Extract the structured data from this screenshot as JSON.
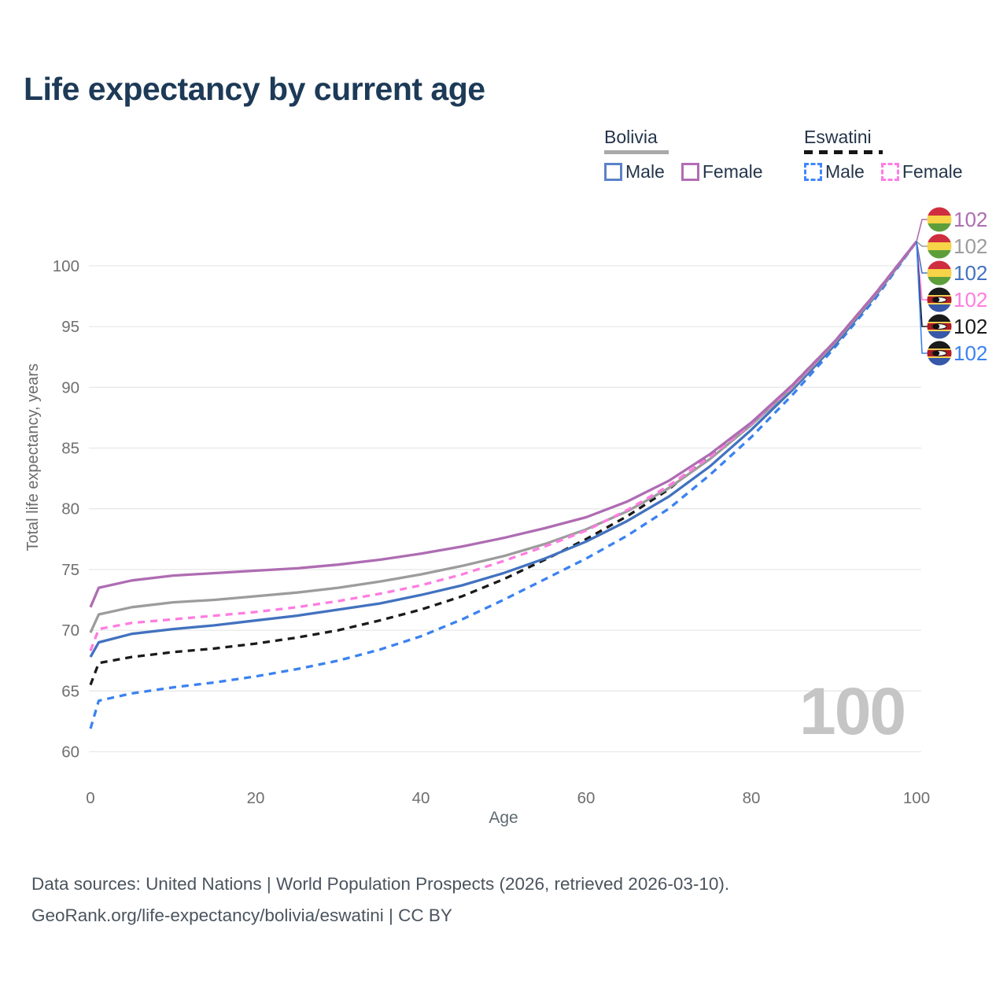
{
  "title": "Life expectancy by current age",
  "watermark": "100",
  "legend": {
    "groups": [
      {
        "country": "Bolivia",
        "items": [
          {
            "label": "Male"
          },
          {
            "label": "Female"
          }
        ]
      },
      {
        "country": "Eswatini",
        "items": [
          {
            "label": "Male"
          },
          {
            "label": "Female"
          }
        ]
      }
    ]
  },
  "footer": {
    "line1": "Data sources: United Nations | World Population Prospects (2026, retrieved 2026-03-10).",
    "line2": "GeoRank.org/life-expectancy/bolivia/eswatini | CC BY"
  },
  "chart_data": {
    "type": "line",
    "title": "Life expectancy by current age",
    "xlabel": "Age",
    "ylabel": "Total life expectancy, years",
    "xlim": [
      0,
      100
    ],
    "ylim": [
      60,
      103
    ],
    "x_ticks": [
      0,
      20,
      40,
      60,
      80,
      100
    ],
    "y_ticks": [
      60,
      65,
      70,
      75,
      80,
      85,
      90,
      95,
      100
    ],
    "grid": "horizontal",
    "legend_position": "top-right",
    "hover_age_label": "100",
    "ages": [
      0,
      1,
      5,
      10,
      15,
      20,
      25,
      30,
      35,
      40,
      45,
      50,
      55,
      60,
      65,
      70,
      75,
      80,
      85,
      90,
      95,
      100
    ],
    "series": [
      {
        "name": "Bolivia Female",
        "country": "Bolivia",
        "sex": "Female",
        "flag": "bolivia",
        "color": "#ae6cb2",
        "dashed": false,
        "end_value": "102",
        "values": [
          71.9,
          73.5,
          74.1,
          74.5,
          74.7,
          74.9,
          75.1,
          75.4,
          75.8,
          76.3,
          76.9,
          77.6,
          78.4,
          79.3,
          80.6,
          82.3,
          84.5,
          87.1,
          90.2,
          93.7,
          97.7,
          102
        ]
      },
      {
        "name": "Bolivia (both sexes)",
        "country": "Bolivia",
        "sex": "Both",
        "flag": "bolivia",
        "color": "#9c9c9c",
        "dashed": false,
        "end_value": "102",
        "values": [
          69.8,
          71.3,
          71.9,
          72.3,
          72.5,
          72.8,
          73.1,
          73.5,
          74.0,
          74.6,
          75.3,
          76.1,
          77.1,
          78.3,
          79.8,
          81.7,
          84.1,
          86.9,
          90.0,
          93.6,
          97.6,
          102
        ]
      },
      {
        "name": "Bolivia Male",
        "country": "Bolivia",
        "sex": "Male",
        "flag": "bolivia",
        "color": "#4272bf",
        "dashed": false,
        "end_value": "102",
        "values": [
          67.8,
          69.0,
          69.7,
          70.1,
          70.4,
          70.8,
          71.2,
          71.7,
          72.2,
          72.9,
          73.7,
          74.7,
          75.9,
          77.3,
          79.0,
          81.0,
          83.5,
          86.5,
          89.8,
          93.4,
          97.5,
          102
        ]
      },
      {
        "name": "Eswatini Female",
        "country": "Eswatini",
        "sex": "Female",
        "flag": "eswatini",
        "color": "#ff7ce0",
        "dashed": true,
        "end_value": "102",
        "values": [
          68.3,
          70.1,
          70.6,
          70.9,
          71.2,
          71.5,
          71.9,
          72.4,
          73.0,
          73.7,
          74.6,
          75.7,
          76.9,
          78.2,
          79.9,
          81.9,
          84.3,
          87.0,
          90.1,
          93.7,
          97.7,
          102
        ]
      },
      {
        "name": "Eswatini (both sexes)",
        "country": "Eswatini",
        "sex": "Both",
        "flag": "eswatini",
        "color": "#1a1a1a",
        "dashed": true,
        "end_value": "102",
        "values": [
          65.5,
          67.3,
          67.8,
          68.2,
          68.5,
          68.9,
          69.4,
          70.0,
          70.8,
          71.7,
          72.8,
          74.2,
          75.8,
          77.5,
          79.4,
          81.6,
          84.4,
          87.0,
          90.2,
          93.7,
          97.7,
          102
        ]
      },
      {
        "name": "Eswatini Male",
        "country": "Eswatini",
        "sex": "Male",
        "flag": "eswatini",
        "color": "#3b82f0",
        "dashed": true,
        "end_value": "102",
        "values": [
          61.9,
          64.2,
          64.8,
          65.3,
          65.7,
          66.2,
          66.8,
          67.5,
          68.4,
          69.5,
          70.9,
          72.5,
          74.2,
          75.9,
          77.8,
          80.0,
          82.8,
          85.9,
          89.4,
          93.2,
          97.3,
          102
        ]
      }
    ],
    "colors": {
      "bolivia_underline": "#a9a9a9",
      "eswatini_underline": "#161616",
      "grid": "#e8e8e8",
      "tick_text": "#6f6f6f",
      "title_text": "#1d3a57",
      "watermark_text": "#c5c5c5",
      "flag_bolivia": [
        "#cf2e3f",
        "#f6d348",
        "#5d9e3a"
      ],
      "flag_eswatini": [
        "#1a1a1a",
        "#f7d84a",
        "#b01c22",
        "#3758a8"
      ]
    }
  }
}
